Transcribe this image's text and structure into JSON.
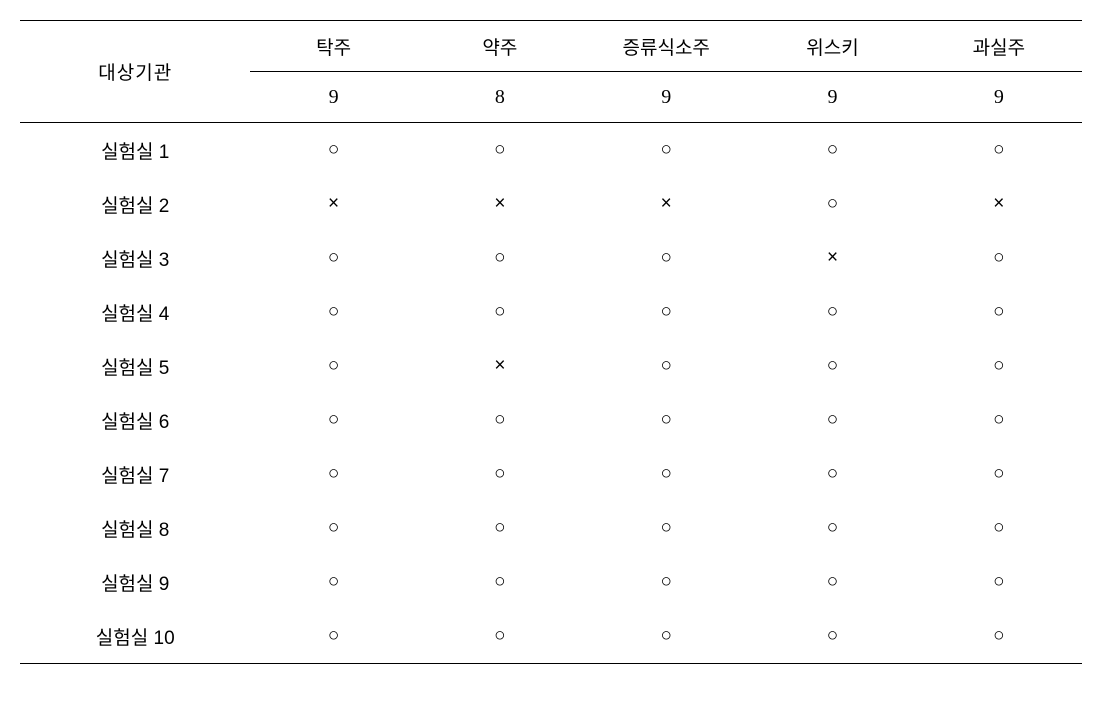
{
  "table": {
    "row_header_label": "대상기관",
    "columns": [
      "탁주",
      "약주",
      "증류식소주",
      "위스키",
      "과실주"
    ],
    "counts": [
      "9",
      "8",
      "9",
      "9",
      "9"
    ],
    "rows": [
      {
        "label": "실험실 1",
        "cells": [
          "○",
          "○",
          "○",
          "○",
          "○"
        ]
      },
      {
        "label": "실험실 2",
        "cells": [
          "×",
          "×",
          "×",
          "○",
          "×"
        ]
      },
      {
        "label": "실험실 3",
        "cells": [
          "○",
          "○",
          "○",
          "×",
          "○"
        ]
      },
      {
        "label": "실험실 4",
        "cells": [
          "○",
          "○",
          "○",
          "○",
          "○"
        ]
      },
      {
        "label": "실험실 5",
        "cells": [
          "○",
          "×",
          "○",
          "○",
          "○"
        ]
      },
      {
        "label": "실험실 6",
        "cells": [
          "○",
          "○",
          "○",
          "○",
          "○"
        ]
      },
      {
        "label": "실험실 7",
        "cells": [
          "○",
          "○",
          "○",
          "○",
          "○"
        ]
      },
      {
        "label": "실험실 8",
        "cells": [
          "○",
          "○",
          "○",
          "○",
          "○"
        ]
      },
      {
        "label": "실험실 9",
        "cells": [
          "○",
          "○",
          "○",
          "○",
          "○"
        ]
      },
      {
        "label": "실험실 10",
        "cells": [
          "○",
          "○",
          "○",
          "○",
          "○"
        ]
      }
    ],
    "symbol_fontsize": 19,
    "text_color": "#000000",
    "background_color": "#ffffff",
    "border_color": "#000000"
  }
}
